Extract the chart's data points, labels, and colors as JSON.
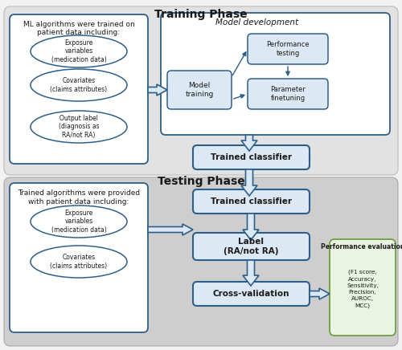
{
  "bg_color": "#f2f2f2",
  "white": "#ffffff",
  "blue_mid": "#2e5f8a",
  "blue_light": "#dce9f5",
  "blue_box_bg": "#eaf2fb",
  "green_light": "#eaf4e2",
  "green_border": "#70a040",
  "training_bg": "#e0e0e0",
  "testing_bg": "#d0d0d0",
  "title_training": "Training Phase",
  "title_testing": "Testing Phase",
  "ml_box_text_line1": "ML algorithms were trained on",
  "ml_box_text_line2": "patient data including:",
  "testing_box_text_line1": "Trained algorithms were provided",
  "testing_box_text_line2": "with patient data including:",
  "model_dev_title": "Model development",
  "ellipse1_train": "Exposure\nvariables\n(medication data)",
  "ellipse2_train": "Covariates\n(claims attributes)",
  "ellipse3_train": "Output label\n(diagnosis as\nRA/not RA)",
  "ellipse1_test": "Exposure\nvariables\n(medication data)",
  "ellipse2_test": "Covariates\n(claims attributes)",
  "model_training_label": "Model\ntraining",
  "perf_testing_label": "Performance\ntesting",
  "param_finetuning_label": "Parameter\nfinetuning",
  "trained_classifier_label1": "Trained classifier",
  "trained_classifier_label2": "Trained classifier",
  "label_box": "Label\n(RA/not RA)",
  "cross_val": "Cross-validation",
  "perf_eval_title": "Performance evaluation",
  "perf_eval_items": "(F1 score,\nAccuracy,\nSensitivity,\nPrecision,\nAUROC,\nMCC)"
}
